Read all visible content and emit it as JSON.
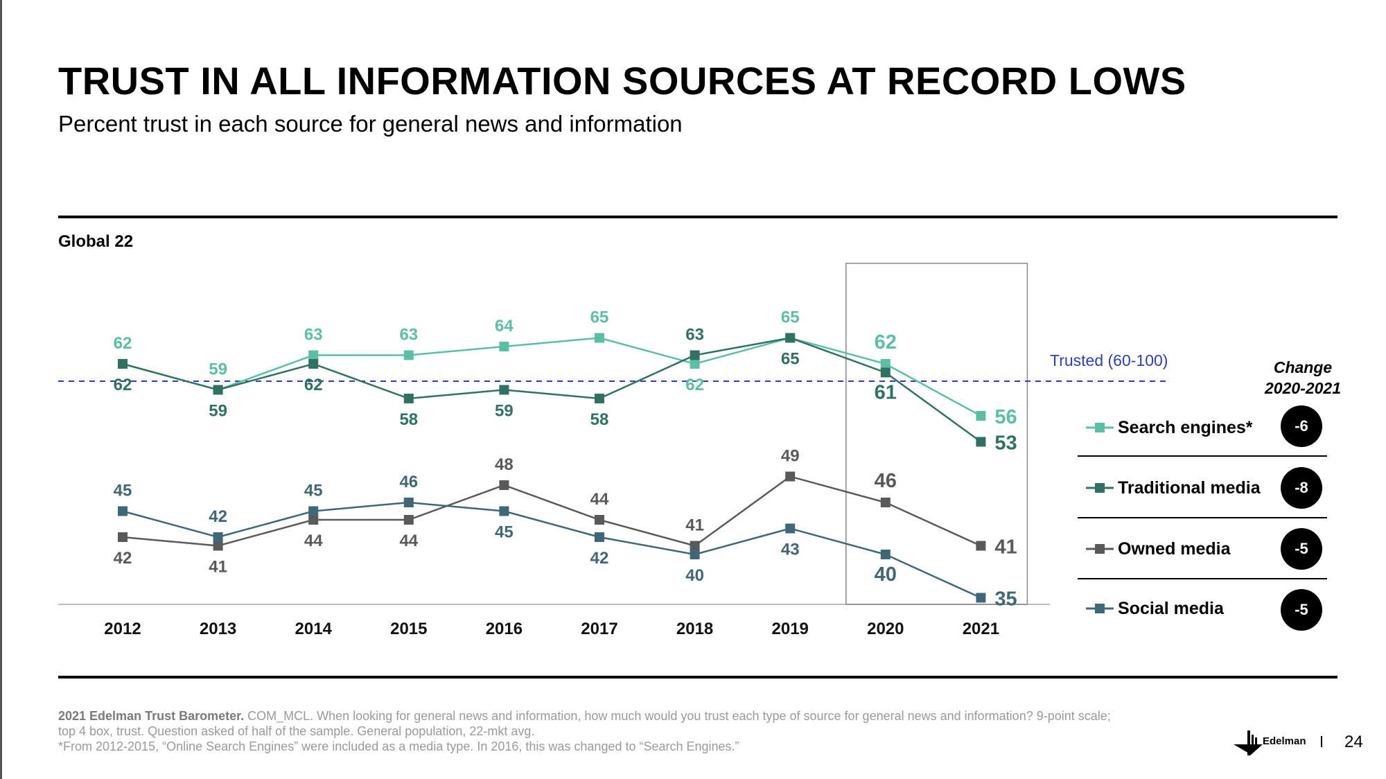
{
  "title": "TRUST IN ALL INFORMATION SOURCES AT RECORD LOWS",
  "subtitle": "Percent trust in each source for general news and information",
  "region": "Global 22",
  "trusted_label": "Trusted (60-100)",
  "change_header": [
    "Change",
    "2020-2021"
  ],
  "legend": [
    {
      "label": "Search engines*",
      "change": "-6",
      "color": "#5bbfa5"
    },
    {
      "label": "Traditional media",
      "change": "-8",
      "color": "#2f7264"
    },
    {
      "label": "Owned media",
      "change": "-5",
      "color": "#58595b"
    },
    {
      "label": "Social media",
      "change": "-5",
      "color": "#3e6778"
    }
  ],
  "chart_data": {
    "type": "line",
    "categories": [
      "2012",
      "2013",
      "2014",
      "2015",
      "2016",
      "2017",
      "2018",
      "2019",
      "2020",
      "2021"
    ],
    "trusted_threshold": 60,
    "highlighted_categories": [
      "2020",
      "2021"
    ],
    "series": [
      {
        "name": "Search engines*",
        "color": "#5bbfa5",
        "values": [
          62,
          59,
          63,
          63,
          64,
          65,
          62,
          65,
          62,
          56
        ]
      },
      {
        "name": "Traditional media",
        "color": "#2f7264",
        "values": [
          62,
          59,
          62,
          58,
          59,
          58,
          63,
          65,
          61,
          53
        ]
      },
      {
        "name": "Owned media",
        "color": "#58595b",
        "values": [
          42,
          41,
          44,
          44,
          48,
          44,
          41,
          49,
          46,
          41
        ]
      },
      {
        "name": "Social media",
        "color": "#3e6778",
        "values": [
          45,
          42,
          45,
          46,
          45,
          42,
          40,
          43,
          40,
          35
        ]
      }
    ]
  },
  "footer": {
    "source_bold": "2021 Edelman Trust Barometer.",
    "source_rest": " COM_MCL. When looking for general news and information, how much would you trust each type of source for general news and information? 9-point scale;",
    "line2": "top 4 box, trust. Question asked of half of the sample. General population, 22-mkt avg.",
    "line3": "*From 2012-2015, “Online Search Engines” were included as a media type. In 2016, this was changed to “Search Engines.”"
  },
  "logo_text": "Edelman",
  "page_number": "24"
}
